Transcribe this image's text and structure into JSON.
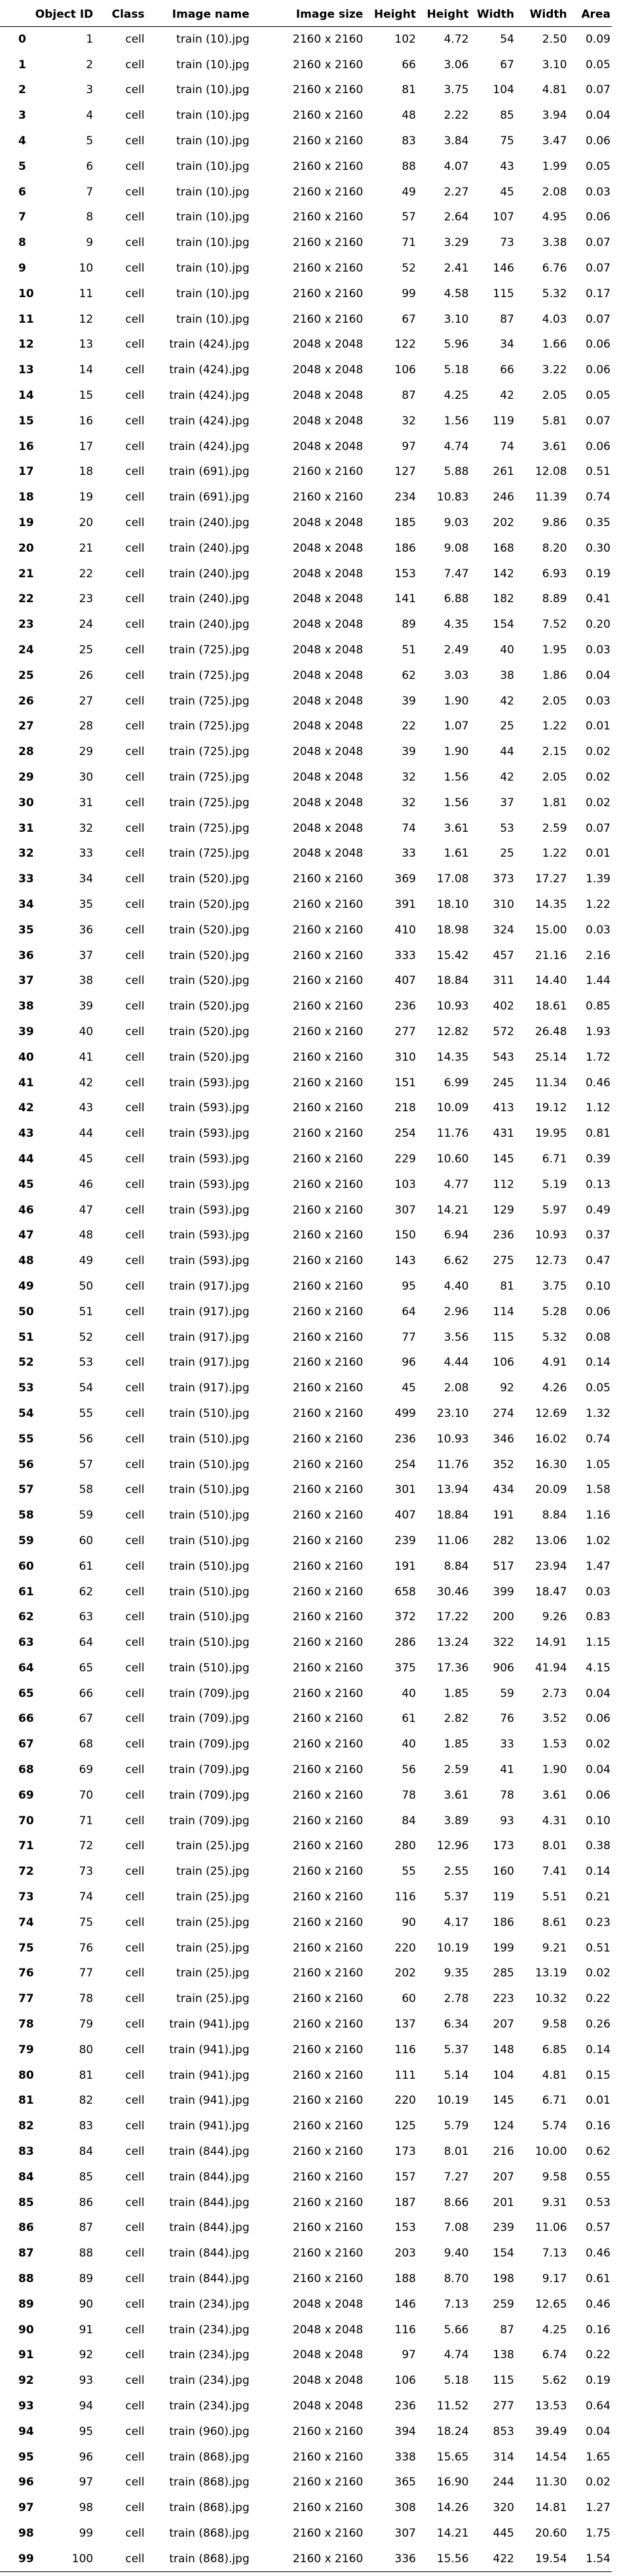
{
  "headers": [
    "",
    "Object ID",
    "Class",
    "Image name",
    "Image size",
    "Height",
    "Height",
    "Width",
    "Width",
    "Area"
  ],
  "rows": [
    [
      "0",
      "1",
      "cell",
      "train (10).jpg",
      "2160 x 2160",
      "102",
      "4.72",
      "54",
      "2.50",
      "0.09"
    ],
    [
      "1",
      "2",
      "cell",
      "train (10).jpg",
      "2160 x 2160",
      "66",
      "3.06",
      "67",
      "3.10",
      "0.05"
    ],
    [
      "2",
      "3",
      "cell",
      "train (10).jpg",
      "2160 x 2160",
      "81",
      "3.75",
      "104",
      "4.81",
      "0.07"
    ],
    [
      "3",
      "4",
      "cell",
      "train (10).jpg",
      "2160 x 2160",
      "48",
      "2.22",
      "85",
      "3.94",
      "0.04"
    ],
    [
      "4",
      "5",
      "cell",
      "train (10).jpg",
      "2160 x 2160",
      "83",
      "3.84",
      "75",
      "3.47",
      "0.06"
    ],
    [
      "5",
      "6",
      "cell",
      "train (10).jpg",
      "2160 x 2160",
      "88",
      "4.07",
      "43",
      "1.99",
      "0.05"
    ],
    [
      "6",
      "7",
      "cell",
      "train (10).jpg",
      "2160 x 2160",
      "49",
      "2.27",
      "45",
      "2.08",
      "0.03"
    ],
    [
      "7",
      "8",
      "cell",
      "train (10).jpg",
      "2160 x 2160",
      "57",
      "2.64",
      "107",
      "4.95",
      "0.06"
    ],
    [
      "8",
      "9",
      "cell",
      "train (10).jpg",
      "2160 x 2160",
      "71",
      "3.29",
      "73",
      "3.38",
      "0.07"
    ],
    [
      "9",
      "10",
      "cell",
      "train (10).jpg",
      "2160 x 2160",
      "52",
      "2.41",
      "146",
      "6.76",
      "0.07"
    ],
    [
      "10",
      "11",
      "cell",
      "train (10).jpg",
      "2160 x 2160",
      "99",
      "4.58",
      "115",
      "5.32",
      "0.17"
    ],
    [
      "11",
      "12",
      "cell",
      "train (10).jpg",
      "2160 x 2160",
      "67",
      "3.10",
      "87",
      "4.03",
      "0.07"
    ],
    [
      "12",
      "13",
      "cell",
      "train (424).jpg",
      "2048 x 2048",
      "122",
      "5.96",
      "34",
      "1.66",
      "0.06"
    ],
    [
      "13",
      "14",
      "cell",
      "train (424).jpg",
      "2048 x 2048",
      "106",
      "5.18",
      "66",
      "3.22",
      "0.06"
    ],
    [
      "14",
      "15",
      "cell",
      "train (424).jpg",
      "2048 x 2048",
      "87",
      "4.25",
      "42",
      "2.05",
      "0.05"
    ],
    [
      "15",
      "16",
      "cell",
      "train (424).jpg",
      "2048 x 2048",
      "32",
      "1.56",
      "119",
      "5.81",
      "0.07"
    ],
    [
      "16",
      "17",
      "cell",
      "train (424).jpg",
      "2048 x 2048",
      "97",
      "4.74",
      "74",
      "3.61",
      "0.06"
    ],
    [
      "17",
      "18",
      "cell",
      "train (691).jpg",
      "2160 x 2160",
      "127",
      "5.88",
      "261",
      "12.08",
      "0.51"
    ],
    [
      "18",
      "19",
      "cell",
      "train (691).jpg",
      "2160 x 2160",
      "234",
      "10.83",
      "246",
      "11.39",
      "0.74"
    ],
    [
      "19",
      "20",
      "cell",
      "train (240).jpg",
      "2048 x 2048",
      "185",
      "9.03",
      "202",
      "9.86",
      "0.35"
    ],
    [
      "20",
      "21",
      "cell",
      "train (240).jpg",
      "2048 x 2048",
      "186",
      "9.08",
      "168",
      "8.20",
      "0.30"
    ],
    [
      "21",
      "22",
      "cell",
      "train (240).jpg",
      "2048 x 2048",
      "153",
      "7.47",
      "142",
      "6.93",
      "0.19"
    ],
    [
      "22",
      "23",
      "cell",
      "train (240).jpg",
      "2048 x 2048",
      "141",
      "6.88",
      "182",
      "8.89",
      "0.41"
    ],
    [
      "23",
      "24",
      "cell",
      "train (240).jpg",
      "2048 x 2048",
      "89",
      "4.35",
      "154",
      "7.52",
      "0.20"
    ],
    [
      "24",
      "25",
      "cell",
      "train (725).jpg",
      "2048 x 2048",
      "51",
      "2.49",
      "40",
      "1.95",
      "0.03"
    ],
    [
      "25",
      "26",
      "cell",
      "train (725).jpg",
      "2048 x 2048",
      "62",
      "3.03",
      "38",
      "1.86",
      "0.04"
    ],
    [
      "26",
      "27",
      "cell",
      "train (725).jpg",
      "2048 x 2048",
      "39",
      "1.90",
      "42",
      "2.05",
      "0.03"
    ],
    [
      "27",
      "28",
      "cell",
      "train (725).jpg",
      "2048 x 2048",
      "22",
      "1.07",
      "25",
      "1.22",
      "0.01"
    ],
    [
      "28",
      "29",
      "cell",
      "train (725).jpg",
      "2048 x 2048",
      "39",
      "1.90",
      "44",
      "2.15",
      "0.02"
    ],
    [
      "29",
      "30",
      "cell",
      "train (725).jpg",
      "2048 x 2048",
      "32",
      "1.56",
      "42",
      "2.05",
      "0.02"
    ],
    [
      "30",
      "31",
      "cell",
      "train (725).jpg",
      "2048 x 2048",
      "32",
      "1.56",
      "37",
      "1.81",
      "0.02"
    ],
    [
      "31",
      "32",
      "cell",
      "train (725).jpg",
      "2048 x 2048",
      "74",
      "3.61",
      "53",
      "2.59",
      "0.07"
    ],
    [
      "32",
      "33",
      "cell",
      "train (725).jpg",
      "2048 x 2048",
      "33",
      "1.61",
      "25",
      "1.22",
      "0.01"
    ],
    [
      "33",
      "34",
      "cell",
      "train (520).jpg",
      "2160 x 2160",
      "369",
      "17.08",
      "373",
      "17.27",
      "1.39"
    ],
    [
      "34",
      "35",
      "cell",
      "train (520).jpg",
      "2160 x 2160",
      "391",
      "18.10",
      "310",
      "14.35",
      "1.22"
    ],
    [
      "35",
      "36",
      "cell",
      "train (520).jpg",
      "2160 x 2160",
      "410",
      "18.98",
      "324",
      "15.00",
      "0.03"
    ],
    [
      "36",
      "37",
      "cell",
      "train (520).jpg",
      "2160 x 2160",
      "333",
      "15.42",
      "457",
      "21.16",
      "2.16"
    ],
    [
      "37",
      "38",
      "cell",
      "train (520).jpg",
      "2160 x 2160",
      "407",
      "18.84",
      "311",
      "14.40",
      "1.44"
    ],
    [
      "38",
      "39",
      "cell",
      "train (520).jpg",
      "2160 x 2160",
      "236",
      "10.93",
      "402",
      "18.61",
      "0.85"
    ],
    [
      "39",
      "40",
      "cell",
      "train (520).jpg",
      "2160 x 2160",
      "277",
      "12.82",
      "572",
      "26.48",
      "1.93"
    ],
    [
      "40",
      "41",
      "cell",
      "train (520).jpg",
      "2160 x 2160",
      "310",
      "14.35",
      "543",
      "25.14",
      "1.72"
    ],
    [
      "41",
      "42",
      "cell",
      "train (593).jpg",
      "2160 x 2160",
      "151",
      "6.99",
      "245",
      "11.34",
      "0.46"
    ],
    [
      "42",
      "43",
      "cell",
      "train (593).jpg",
      "2160 x 2160",
      "218",
      "10.09",
      "413",
      "19.12",
      "1.12"
    ],
    [
      "43",
      "44",
      "cell",
      "train (593).jpg",
      "2160 x 2160",
      "254",
      "11.76",
      "431",
      "19.95",
      "0.81"
    ],
    [
      "44",
      "45",
      "cell",
      "train (593).jpg",
      "2160 x 2160",
      "229",
      "10.60",
      "145",
      "6.71",
      "0.39"
    ],
    [
      "45",
      "46",
      "cell",
      "train (593).jpg",
      "2160 x 2160",
      "103",
      "4.77",
      "112",
      "5.19",
      "0.13"
    ],
    [
      "46",
      "47",
      "cell",
      "train (593).jpg",
      "2160 x 2160",
      "307",
      "14.21",
      "129",
      "5.97",
      "0.49"
    ],
    [
      "47",
      "48",
      "cell",
      "train (593).jpg",
      "2160 x 2160",
      "150",
      "6.94",
      "236",
      "10.93",
      "0.37"
    ],
    [
      "48",
      "49",
      "cell",
      "train (593).jpg",
      "2160 x 2160",
      "143",
      "6.62",
      "275",
      "12.73",
      "0.47"
    ],
    [
      "49",
      "50",
      "cell",
      "train (917).jpg",
      "2160 x 2160",
      "95",
      "4.40",
      "81",
      "3.75",
      "0.10"
    ],
    [
      "50",
      "51",
      "cell",
      "train (917).jpg",
      "2160 x 2160",
      "64",
      "2.96",
      "114",
      "5.28",
      "0.06"
    ],
    [
      "51",
      "52",
      "cell",
      "train (917).jpg",
      "2160 x 2160",
      "77",
      "3.56",
      "115",
      "5.32",
      "0.08"
    ],
    [
      "52",
      "53",
      "cell",
      "train (917).jpg",
      "2160 x 2160",
      "96",
      "4.44",
      "106",
      "4.91",
      "0.14"
    ],
    [
      "53",
      "54",
      "cell",
      "train (917).jpg",
      "2160 x 2160",
      "45",
      "2.08",
      "92",
      "4.26",
      "0.05"
    ],
    [
      "54",
      "55",
      "cell",
      "train (510).jpg",
      "2160 x 2160",
      "499",
      "23.10",
      "274",
      "12.69",
      "1.32"
    ],
    [
      "55",
      "56",
      "cell",
      "train (510).jpg",
      "2160 x 2160",
      "236",
      "10.93",
      "346",
      "16.02",
      "0.74"
    ],
    [
      "56",
      "57",
      "cell",
      "train (510).jpg",
      "2160 x 2160",
      "254",
      "11.76",
      "352",
      "16.30",
      "1.05"
    ],
    [
      "57",
      "58",
      "cell",
      "train (510).jpg",
      "2160 x 2160",
      "301",
      "13.94",
      "434",
      "20.09",
      "1.58"
    ],
    [
      "58",
      "59",
      "cell",
      "train (510).jpg",
      "2160 x 2160",
      "407",
      "18.84",
      "191",
      "8.84",
      "1.16"
    ],
    [
      "59",
      "60",
      "cell",
      "train (510).jpg",
      "2160 x 2160",
      "239",
      "11.06",
      "282",
      "13.06",
      "1.02"
    ],
    [
      "60",
      "61",
      "cell",
      "train (510).jpg",
      "2160 x 2160",
      "191",
      "8.84",
      "517",
      "23.94",
      "1.47"
    ],
    [
      "61",
      "62",
      "cell",
      "train (510).jpg",
      "2160 x 2160",
      "658",
      "30.46",
      "399",
      "18.47",
      "0.03"
    ],
    [
      "62",
      "63",
      "cell",
      "train (510).jpg",
      "2160 x 2160",
      "372",
      "17.22",
      "200",
      "9.26",
      "0.83"
    ],
    [
      "63",
      "64",
      "cell",
      "train (510).jpg",
      "2160 x 2160",
      "286",
      "13.24",
      "322",
      "14.91",
      "1.15"
    ],
    [
      "64",
      "65",
      "cell",
      "train (510).jpg",
      "2160 x 2160",
      "375",
      "17.36",
      "906",
      "41.94",
      "4.15"
    ],
    [
      "65",
      "66",
      "cell",
      "train (709).jpg",
      "2160 x 2160",
      "40",
      "1.85",
      "59",
      "2.73",
      "0.04"
    ],
    [
      "66",
      "67",
      "cell",
      "train (709).jpg",
      "2160 x 2160",
      "61",
      "2.82",
      "76",
      "3.52",
      "0.06"
    ],
    [
      "67",
      "68",
      "cell",
      "train (709).jpg",
      "2160 x 2160",
      "40",
      "1.85",
      "33",
      "1.53",
      "0.02"
    ],
    [
      "68",
      "69",
      "cell",
      "train (709).jpg",
      "2160 x 2160",
      "56",
      "2.59",
      "41",
      "1.90",
      "0.04"
    ],
    [
      "69",
      "70",
      "cell",
      "train (709).jpg",
      "2160 x 2160",
      "78",
      "3.61",
      "78",
      "3.61",
      "0.06"
    ],
    [
      "70",
      "71",
      "cell",
      "train (709).jpg",
      "2160 x 2160",
      "84",
      "3.89",
      "93",
      "4.31",
      "0.10"
    ],
    [
      "71",
      "72",
      "cell",
      "train (25).jpg",
      "2160 x 2160",
      "280",
      "12.96",
      "173",
      "8.01",
      "0.38"
    ],
    [
      "72",
      "73",
      "cell",
      "train (25).jpg",
      "2160 x 2160",
      "55",
      "2.55",
      "160",
      "7.41",
      "0.14"
    ],
    [
      "73",
      "74",
      "cell",
      "train (25).jpg",
      "2160 x 2160",
      "116",
      "5.37",
      "119",
      "5.51",
      "0.21"
    ],
    [
      "74",
      "75",
      "cell",
      "train (25).jpg",
      "2160 x 2160",
      "90",
      "4.17",
      "186",
      "8.61",
      "0.23"
    ],
    [
      "75",
      "76",
      "cell",
      "train (25).jpg",
      "2160 x 2160",
      "220",
      "10.19",
      "199",
      "9.21",
      "0.51"
    ],
    [
      "76",
      "77",
      "cell",
      "train (25).jpg",
      "2160 x 2160",
      "202",
      "9.35",
      "285",
      "13.19",
      "0.02"
    ],
    [
      "77",
      "78",
      "cell",
      "train (25).jpg",
      "2160 x 2160",
      "60",
      "2.78",
      "223",
      "10.32",
      "0.22"
    ],
    [
      "78",
      "79",
      "cell",
      "train (941).jpg",
      "2160 x 2160",
      "137",
      "6.34",
      "207",
      "9.58",
      "0.26"
    ],
    [
      "79",
      "80",
      "cell",
      "train (941).jpg",
      "2160 x 2160",
      "116",
      "5.37",
      "148",
      "6.85",
      "0.14"
    ],
    [
      "80",
      "81",
      "cell",
      "train (941).jpg",
      "2160 x 2160",
      "111",
      "5.14",
      "104",
      "4.81",
      "0.15"
    ],
    [
      "81",
      "82",
      "cell",
      "train (941).jpg",
      "2160 x 2160",
      "220",
      "10.19",
      "145",
      "6.71",
      "0.01"
    ],
    [
      "82",
      "83",
      "cell",
      "train (941).jpg",
      "2160 x 2160",
      "125",
      "5.79",
      "124",
      "5.74",
      "0.16"
    ],
    [
      "83",
      "84",
      "cell",
      "train (844).jpg",
      "2160 x 2160",
      "173",
      "8.01",
      "216",
      "10.00",
      "0.62"
    ],
    [
      "84",
      "85",
      "cell",
      "train (844).jpg",
      "2160 x 2160",
      "157",
      "7.27",
      "207",
      "9.58",
      "0.55"
    ],
    [
      "85",
      "86",
      "cell",
      "train (844).jpg",
      "2160 x 2160",
      "187",
      "8.66",
      "201",
      "9.31",
      "0.53"
    ],
    [
      "86",
      "87",
      "cell",
      "train (844).jpg",
      "2160 x 2160",
      "153",
      "7.08",
      "239",
      "11.06",
      "0.57"
    ],
    [
      "87",
      "88",
      "cell",
      "train (844).jpg",
      "2160 x 2160",
      "203",
      "9.40",
      "154",
      "7.13",
      "0.46"
    ],
    [
      "88",
      "89",
      "cell",
      "train (844).jpg",
      "2160 x 2160",
      "188",
      "8.70",
      "198",
      "9.17",
      "0.61"
    ],
    [
      "89",
      "90",
      "cell",
      "train (234).jpg",
      "2048 x 2048",
      "146",
      "7.13",
      "259",
      "12.65",
      "0.46"
    ],
    [
      "90",
      "91",
      "cell",
      "train (234).jpg",
      "2048 x 2048",
      "116",
      "5.66",
      "87",
      "4.25",
      "0.16"
    ],
    [
      "91",
      "92",
      "cell",
      "train (234).jpg",
      "2048 x 2048",
      "97",
      "4.74",
      "138",
      "6.74",
      "0.22"
    ],
    [
      "92",
      "93",
      "cell",
      "train (234).jpg",
      "2048 x 2048",
      "106",
      "5.18",
      "115",
      "5.62",
      "0.19"
    ],
    [
      "93",
      "94",
      "cell",
      "train (234).jpg",
      "2048 x 2048",
      "236",
      "11.52",
      "277",
      "13.53",
      "0.64"
    ],
    [
      "94",
      "95",
      "cell",
      "train (960).jpg",
      "2160 x 2160",
      "394",
      "18.24",
      "853",
      "39.49",
      "0.04"
    ],
    [
      "95",
      "96",
      "cell",
      "train (868).jpg",
      "2160 x 2160",
      "338",
      "15.65",
      "314",
      "14.54",
      "1.65"
    ],
    [
      "96",
      "97",
      "cell",
      "train (868).jpg",
      "2160 x 2160",
      "365",
      "16.90",
      "244",
      "11.30",
      "0.02"
    ],
    [
      "97",
      "98",
      "cell",
      "train (868).jpg",
      "2160 x 2160",
      "308",
      "14.26",
      "320",
      "14.81",
      "1.27"
    ],
    [
      "98",
      "99",
      "cell",
      "train (868).jpg",
      "2160 x 2160",
      "307",
      "14.21",
      "445",
      "20.60",
      "1.75"
    ],
    [
      "99",
      "100",
      "cell",
      "train (868).jpg",
      "2160 x 2160",
      "336",
      "15.56",
      "422",
      "19.54",
      "1.54"
    ]
  ]
}
